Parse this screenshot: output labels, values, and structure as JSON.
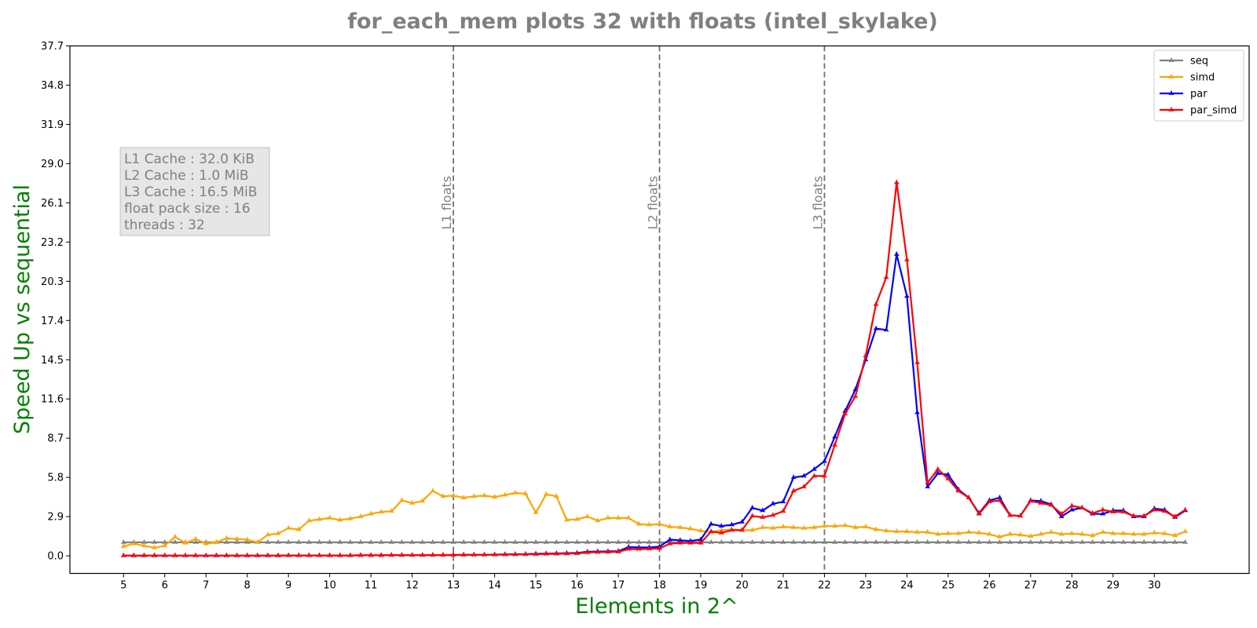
{
  "chart_data": {
    "type": "line",
    "title": "for_each_mem plots 32 with floats  (intel_skylake)",
    "xlabel": "Elements in 2^",
    "ylabel": "Speed Up vs sequential",
    "xlim": [
      3.7,
      32.3
    ],
    "ylim": [
      -1.3,
      37.7
    ],
    "xticks": [
      5,
      6,
      7,
      8,
      9,
      10,
      11,
      12,
      13,
      14,
      15,
      16,
      17,
      18,
      19,
      20,
      21,
      22,
      23,
      24,
      25,
      26,
      27,
      28,
      29,
      30
    ],
    "yticks": [
      0.0,
      2.9,
      5.8,
      8.7,
      11.6,
      14.5,
      17.4,
      20.3,
      23.2,
      26.1,
      29.0,
      31.9,
      34.8,
      37.7
    ],
    "ytick_labels": [
      "0.0",
      "2.9",
      "5.8",
      "8.7",
      "11.6",
      "14.5",
      "17.4",
      "20.3",
      "23.2",
      "26.1",
      "29.0",
      "31.9",
      "34.8",
      "37.7"
    ],
    "grid": false,
    "legend_position": "top-right",
    "x": [
      5,
      5.25,
      5.5,
      5.75,
      6,
      6.25,
      6.5,
      6.75,
      7,
      7.25,
      7.5,
      7.75,
      8,
      8.25,
      8.5,
      8.75,
      9,
      9.25,
      9.5,
      9.75,
      10,
      10.25,
      10.5,
      10.75,
      11,
      11.25,
      11.5,
      11.75,
      12,
      12.25,
      12.5,
      12.75,
      13,
      13.25,
      13.5,
      13.75,
      14,
      14.25,
      14.5,
      14.75,
      15,
      15.25,
      15.5,
      15.75,
      16,
      16.25,
      16.5,
      16.75,
      17,
      17.25,
      17.5,
      17.75,
      18,
      18.25,
      18.5,
      18.75,
      19,
      19.25,
      19.5,
      19.75,
      20,
      20.25,
      20.5,
      20.75,
      21,
      21.25,
      21.5,
      21.75,
      22,
      22.25,
      22.5,
      22.75,
      23,
      23.25,
      23.5,
      23.75,
      24,
      24.25,
      24.5,
      24.75,
      25,
      25.25,
      25.5,
      25.75,
      26,
      26.25,
      26.5,
      26.75,
      27,
      27.25,
      27.5,
      27.75,
      28,
      28.25,
      28.5,
      28.75,
      29,
      29.25,
      29.5,
      29.75,
      30,
      30.25,
      30.5,
      30.75
    ],
    "series": [
      {
        "name": "seq",
        "color": "#808080",
        "values": [
          1,
          1,
          1,
          1,
          1,
          1,
          1,
          1,
          1,
          1,
          1,
          1,
          1,
          1,
          1,
          1,
          1,
          1,
          1,
          1,
          1,
          1,
          1,
          1,
          1,
          1,
          1,
          1,
          1,
          1,
          1,
          1,
          1,
          1,
          1,
          1,
          1,
          1,
          1,
          1,
          1,
          1,
          1,
          1,
          1,
          1,
          1,
          1,
          1,
          1,
          1,
          1,
          1,
          1,
          1,
          1,
          1,
          1,
          1,
          1,
          1,
          1,
          1,
          1,
          1,
          1,
          1,
          1,
          1,
          1,
          1,
          1,
          1,
          1,
          1,
          1,
          1,
          1,
          1,
          1,
          1,
          1,
          1,
          1,
          1,
          1,
          1,
          1,
          1,
          1,
          1,
          1,
          1,
          1,
          1,
          1,
          1,
          1,
          1,
          1,
          1,
          1,
          1,
          1
        ]
      },
      {
        "name": "simd",
        "color": "#ffa500",
        "values": [
          0.7,
          0.9,
          0.75,
          0.6,
          0.75,
          1.4,
          0.95,
          1.25,
          0.9,
          1.0,
          1.3,
          1.25,
          1.2,
          1.0,
          1.55,
          1.65,
          2.05,
          1.95,
          2.6,
          2.7,
          2.8,
          2.65,
          2.75,
          2.9,
          3.1,
          3.25,
          3.3,
          4.1,
          3.9,
          4.05,
          4.8,
          4.4,
          4.45,
          4.3,
          4.4,
          4.45,
          4.35,
          4.5,
          4.65,
          4.6,
          3.2,
          4.55,
          4.4,
          2.65,
          2.7,
          2.9,
          2.6,
          2.8,
          2.8,
          2.8,
          2.35,
          2.3,
          2.35,
          2.15,
          2.1,
          2.0,
          1.85,
          1.75,
          1.9,
          1.95,
          1.9,
          1.9,
          2.1,
          2.05,
          2.15,
          2.1,
          2.05,
          2.1,
          2.2,
          2.2,
          2.25,
          2.1,
          2.15,
          1.95,
          1.85,
          1.8,
          1.8,
          1.75,
          1.75,
          1.6,
          1.65,
          1.65,
          1.75,
          1.7,
          1.6,
          1.4,
          1.6,
          1.55,
          1.45,
          1.6,
          1.75,
          1.6,
          1.65,
          1.6,
          1.5,
          1.75,
          1.65,
          1.65,
          1.6,
          1.6,
          1.7,
          1.65,
          1.5,
          1.8
        ]
      },
      {
        "name": "par",
        "color": "#0000ff",
        "values": [
          0.02,
          0.02,
          0.02,
          0.02,
          0.02,
          0.02,
          0.02,
          0.02,
          0.02,
          0.02,
          0.02,
          0.02,
          0.02,
          0.02,
          0.02,
          0.02,
          0.03,
          0.03,
          0.03,
          0.03,
          0.03,
          0.03,
          0.03,
          0.04,
          0.04,
          0.04,
          0.05,
          0.05,
          0.05,
          0.05,
          0.06,
          0.06,
          0.07,
          0.07,
          0.08,
          0.08,
          0.09,
          0.11,
          0.12,
          0.13,
          0.15,
          0.17,
          0.18,
          0.2,
          0.22,
          0.3,
          0.32,
          0.33,
          0.35,
          0.65,
          0.62,
          0.62,
          0.68,
          1.2,
          1.15,
          1.1,
          1.2,
          2.35,
          2.2,
          2.3,
          2.5,
          3.55,
          3.35,
          3.85,
          4.0,
          5.8,
          5.9,
          6.4,
          7.0,
          8.8,
          10.7,
          12.3,
          14.5,
          16.8,
          16.7,
          22.3,
          19.2,
          10.6,
          5.1,
          6.1,
          6.0,
          4.9,
          4.3,
          3.15,
          4.1,
          4.3,
          3.0,
          2.95,
          4.1,
          4.05,
          3.8,
          2.9,
          3.4,
          3.55,
          3.1,
          3.1,
          3.35,
          3.35,
          2.9,
          2.9,
          3.5,
          3.4,
          2.85,
          3.35
        ]
      },
      {
        "name": "par_simd",
        "color": "#ff0000",
        "values": [
          0.02,
          0.02,
          0.02,
          0.02,
          0.02,
          0.02,
          0.02,
          0.02,
          0.02,
          0.02,
          0.02,
          0.02,
          0.02,
          0.02,
          0.02,
          0.02,
          0.03,
          0.03,
          0.03,
          0.03,
          0.03,
          0.03,
          0.03,
          0.04,
          0.04,
          0.04,
          0.05,
          0.05,
          0.05,
          0.05,
          0.06,
          0.06,
          0.06,
          0.07,
          0.07,
          0.08,
          0.08,
          0.09,
          0.1,
          0.11,
          0.12,
          0.14,
          0.15,
          0.16,
          0.18,
          0.25,
          0.27,
          0.28,
          0.3,
          0.5,
          0.5,
          0.52,
          0.55,
          0.9,
          0.95,
          0.95,
          0.95,
          1.8,
          1.7,
          1.9,
          1.9,
          2.95,
          2.85,
          3.0,
          3.3,
          4.8,
          5.1,
          5.9,
          5.9,
          8.2,
          10.5,
          11.8,
          14.8,
          18.6,
          20.6,
          27.6,
          21.9,
          14.3,
          5.4,
          6.4,
          5.7,
          4.8,
          4.3,
          3.1,
          4.0,
          4.1,
          3.0,
          2.95,
          4.05,
          3.9,
          3.75,
          3.1,
          3.7,
          3.55,
          3.15,
          3.4,
          3.25,
          3.25,
          2.95,
          2.95,
          3.4,
          3.3,
          2.9,
          3.4
        ]
      }
    ],
    "vlines": [
      {
        "x": 13,
        "label": "L1 floats"
      },
      {
        "x": 18,
        "label": "L2 floats"
      },
      {
        "x": 22,
        "label": "L3 floats"
      }
    ],
    "info_box": [
      "L1 Cache : 32.0 KiB",
      "L2 Cache : 1.0 MiB",
      "L3 Cache : 16.5 MiB",
      "float pack size : 16",
      "threads : 32"
    ]
  }
}
